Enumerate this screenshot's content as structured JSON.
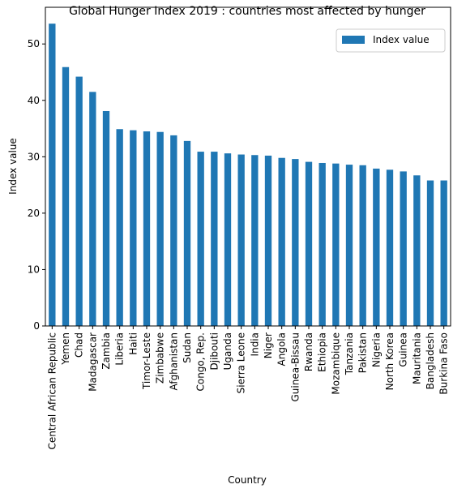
{
  "colors": {
    "bar": "#1f77b4",
    "axis": "#000000",
    "legend_border": "#cccccc",
    "background": "#ffffff"
  },
  "chart_data": {
    "type": "bar",
    "title": "Global Hunger Index 2019 : countries most affected by hunger",
    "xlabel": "Country",
    "ylabel": "Index value",
    "ylim": [
      0,
      56.5
    ],
    "yticks": [
      0,
      10,
      20,
      30,
      40,
      50
    ],
    "grid": false,
    "legend": {
      "placement": "top-right",
      "entries": [
        "Index value"
      ]
    },
    "categories": [
      "Central African Republic",
      "Yemen",
      "Chad",
      "Madagascar",
      "Zambia",
      "Liberia",
      "Haiti",
      "Timor-Leste",
      "Zimbabwe",
      "Afghanistan",
      "Sudan",
      "Congo, Rep.",
      "Djibouti",
      "Uganda",
      "Sierra Leone",
      "India",
      "Niger",
      "Angola",
      "Guinea-Bissau",
      "Rwanda",
      "Ethiopia",
      "Mozambique",
      "Tanzania",
      "Pakistan",
      "Nigeria",
      "North Korea",
      "Guinea",
      "Mauritania",
      "Bangladesh",
      "Burkina Faso"
    ],
    "series": [
      {
        "name": "Index value",
        "values": [
          53.6,
          45.9,
          44.2,
          41.5,
          38.1,
          34.9,
          34.7,
          34.5,
          34.4,
          33.8,
          32.8,
          30.9,
          30.9,
          30.6,
          30.4,
          30.3,
          30.2,
          29.8,
          29.6,
          29.1,
          28.9,
          28.8,
          28.6,
          28.5,
          27.9,
          27.7,
          27.4,
          26.7,
          25.8,
          25.8
        ]
      }
    ]
  }
}
